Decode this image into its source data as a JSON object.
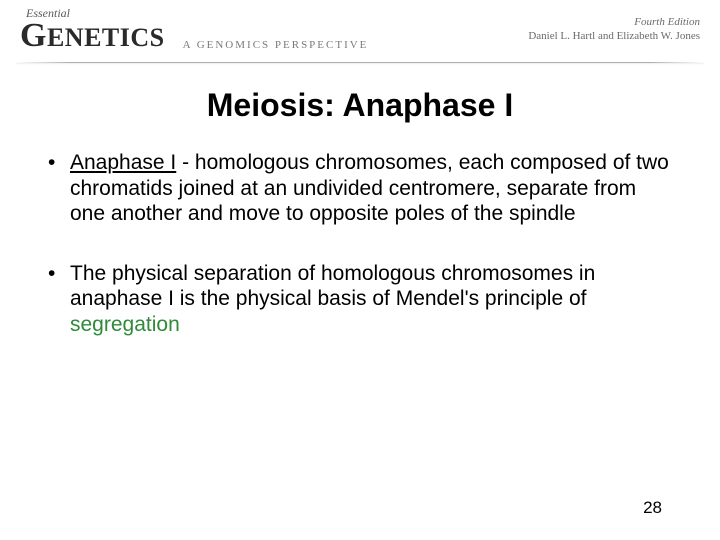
{
  "header": {
    "essential": "Essential",
    "genetics_g": "G",
    "genetics_rest": "ENETICS",
    "subtitle": "A GENOMICS PERSPECTIVE",
    "edition": "Fourth Edition",
    "authors": "Daniel L. Hartl and Elizabeth W. Jones"
  },
  "slide": {
    "title": "Meiosis: Anaphase I",
    "bullets": [
      {
        "underline": "Anaphase I",
        "rest": " - homologous chromosomes, each composed of two chromatids joined at an undivided centromere, separate from one another and move to opposite poles of the spindle"
      },
      {
        "plain": "The physical separation of homologous chromosomes in anaphase I is the physical basis of Mendel's principle of ",
        "highlight": "segregation"
      }
    ],
    "page_number": "28"
  },
  "colors": {
    "highlight": "#2f8a3a",
    "text": "#000000",
    "header_text": "#5a5a5a",
    "background": "#ffffff"
  }
}
